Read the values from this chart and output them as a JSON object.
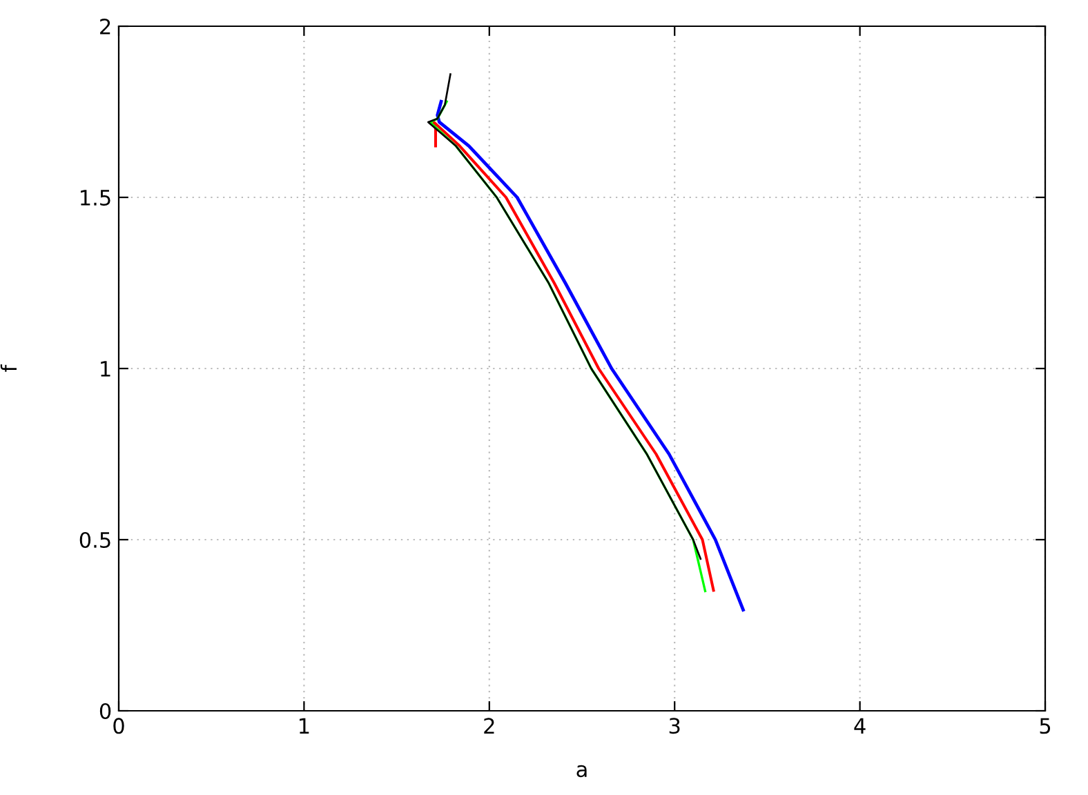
{
  "chart_data": {
    "type": "line",
    "xlabel": "a",
    "ylabel": "f",
    "xlim": [
      0,
      5
    ],
    "ylim": [
      0,
      2
    ],
    "xticks": [
      0,
      1,
      2,
      3,
      4,
      5
    ],
    "yticks": [
      0,
      0.5,
      1,
      1.5,
      2
    ],
    "grid": true,
    "legend": false,
    "marker": "none",
    "line_style": "solid",
    "series": [
      {
        "color": "#0000ff",
        "x": [
          1.74,
          1.72,
          1.73,
          1.89,
          2.15,
          2.41,
          2.66,
          2.97,
          3.22,
          3.37
        ],
        "values": [
          1.78,
          1.74,
          1.72,
          1.65,
          1.5,
          1.25,
          1.0,
          0.75,
          0.5,
          0.295
        ]
      },
      {
        "color": "#ff0000",
        "x": [
          1.71,
          1.71,
          1.7,
          1.84,
          2.09,
          2.35,
          2.59,
          2.9,
          3.15,
          3.21
        ],
        "values": [
          1.65,
          1.7,
          1.72,
          1.65,
          1.5,
          1.25,
          1.0,
          0.75,
          0.5,
          0.352
        ]
      },
      {
        "color": "#00ff00",
        "x": [
          1.77,
          1.72,
          1.68,
          1.82,
          2.04,
          2.32,
          2.55,
          2.85,
          3.1,
          3.165
        ],
        "values": [
          1.78,
          1.73,
          1.72,
          1.65,
          1.5,
          1.25,
          1.0,
          0.75,
          0.5,
          0.35
        ]
      },
      {
        "color": "#000000",
        "x": [
          1.79,
          1.76,
          1.72,
          1.67,
          1.82,
          2.04,
          2.32,
          2.55,
          2.85,
          3.1,
          3.14
        ],
        "values": [
          1.86,
          1.77,
          1.73,
          1.72,
          1.65,
          1.5,
          1.25,
          1.0,
          0.75,
          0.5,
          0.444
        ]
      }
    ]
  }
}
